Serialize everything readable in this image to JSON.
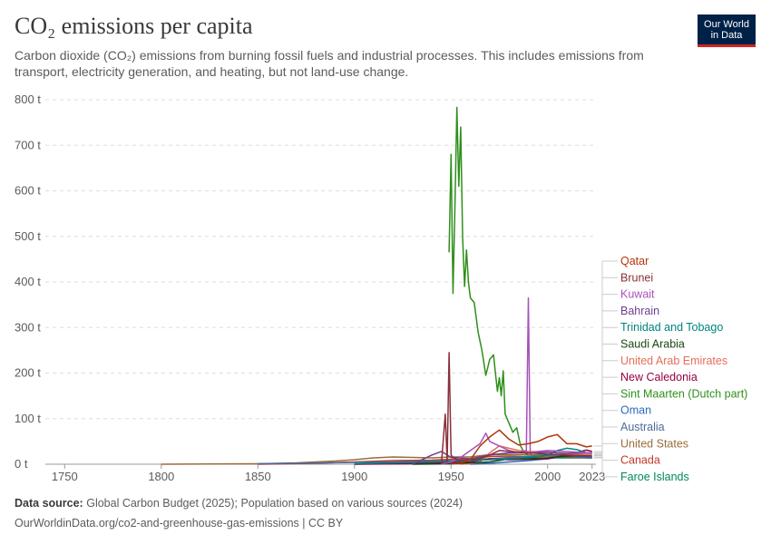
{
  "header": {
    "title": "CO₂ emissions per capita",
    "subtitle": "Carbon dioxide (CO₂) emissions from burning fossil fuels and industrial processes. This includes emissions from transport, electricity generation, and heating, but not land-use change.",
    "logo_line1": "Our World",
    "logo_line2": "in Data"
  },
  "footer": {
    "source_label": "Data source:",
    "source_text": "Global Carbon Budget (2025); Population based on various sources (2024)",
    "url": "OurWorldinData.org/co2-and-greenhouse-gas-emissions | CC BY"
  },
  "chart_data": {
    "type": "line",
    "title": "CO₂ emissions per capita",
    "xlabel": "",
    "ylabel": "",
    "xlim": [
      1740,
      2025
    ],
    "ylim": [
      0,
      800
    ],
    "y_ticks": [
      0,
      100,
      200,
      300,
      400,
      500,
      600,
      700,
      800
    ],
    "y_tick_labels": [
      "0 t",
      "100 t",
      "200 t",
      "300 t",
      "400 t",
      "500 t",
      "600 t",
      "700 t",
      "800 t"
    ],
    "x_ticks": [
      1750,
      1800,
      1850,
      1900,
      1950,
      2000,
      2023
    ],
    "x_tick_labels": [
      "1750",
      "1800",
      "1850",
      "1900",
      "1950",
      "2000",
      "2023"
    ],
    "grid": true,
    "legend_position": "right",
    "series": [
      {
        "name": "Qatar",
        "color": "#b13507",
        "x": [
          1950,
          1955,
          1960,
          1965,
          1970,
          1975,
          1980,
          1985,
          1990,
          1995,
          2000,
          2005,
          2010,
          2015,
          2020,
          2023
        ],
        "values": [
          1,
          3,
          10,
          40,
          60,
          75,
          55,
          42,
          45,
          50,
          60,
          65,
          45,
          45,
          38,
          40
        ]
      },
      {
        "name": "Brunei",
        "color": "#883039",
        "x": [
          1945,
          1947,
          1948,
          1949,
          1950,
          1951,
          1953,
          1955,
          1960,
          1965,
          1970,
          1975,
          1980,
          1990,
          2000,
          2010,
          2023
        ],
        "values": [
          0,
          110,
          5,
          245,
          20,
          15,
          10,
          8,
          10,
          12,
          20,
          30,
          28,
          25,
          22,
          20,
          18
        ]
      },
      {
        "name": "Kuwait",
        "color": "#a652ba",
        "x": [
          1945,
          1950,
          1955,
          1960,
          1965,
          1968,
          1970,
          1975,
          1980,
          1985,
          1989,
          1990,
          1991,
          1992,
          1995,
          2000,
          2010,
          2023
        ],
        "values": [
          0,
          5,
          15,
          30,
          45,
          68,
          50,
          40,
          30,
          25,
          30,
          365,
          20,
          25,
          28,
          30,
          28,
          24
        ]
      },
      {
        "name": "Bahrain",
        "color": "#6d3e91",
        "x": [
          1930,
          1940,
          1945,
          1950,
          1960,
          1970,
          1980,
          1990,
          2000,
          2010,
          2023
        ],
        "values": [
          0,
          20,
          28,
          15,
          12,
          20,
          25,
          24,
          26,
          24,
          25
        ]
      },
      {
        "name": "Trinidad and Tobago",
        "color": "#00847e",
        "x": [
          1900,
          1920,
          1940,
          1960,
          1970,
          1980,
          1990,
          2000,
          2005,
          2010,
          2015,
          2020,
          2023
        ],
        "values": [
          1,
          3,
          5,
          8,
          10,
          12,
          15,
          20,
          30,
          35,
          32,
          25,
          24
        ]
      },
      {
        "name": "Saudi Arabia",
        "color": "#18470f",
        "x": [
          1930,
          1950,
          1960,
          1970,
          1980,
          1990,
          2000,
          2010,
          2015,
          2023
        ],
        "values": [
          0,
          1,
          3,
          5,
          12,
          12,
          14,
          18,
          19,
          18
        ]
      },
      {
        "name": "United Arab Emirates",
        "color": "#e56e5a",
        "x": [
          1955,
          1960,
          1965,
          1970,
          1975,
          1980,
          1985,
          1990,
          2000,
          2010,
          2023
        ],
        "values": [
          0,
          1,
          5,
          25,
          40,
          35,
          30,
          28,
          27,
          22,
          21
        ]
      },
      {
        "name": "New Caledonia",
        "color": "#970046",
        "x": [
          1900,
          1930,
          1960,
          1970,
          1980,
          1990,
          2000,
          2010,
          2020,
          2023
        ],
        "values": [
          0,
          1,
          5,
          12,
          10,
          11,
          12,
          20,
          31,
          28
        ]
      },
      {
        "name": "Sint Maarten (Dutch part)",
        "color": "#38aaba",
        "x": [
          1949,
          1950,
          1951,
          1952,
          1953,
          1954,
          1955,
          1956,
          1957,
          1958,
          1959,
          1960,
          1962,
          1964,
          1966,
          1968,
          1970,
          1972,
          1973,
          1974,
          1975,
          1976,
          1977,
          1978,
          1980,
          1982,
          1984,
          1985,
          1986,
          1988,
          1990
        ],
        "values": [
          465,
          680,
          375,
          560,
          783,
          610,
          740,
          500,
          390,
          470,
          400,
          365,
          355,
          290,
          250,
          195,
          230,
          240,
          200,
          160,
          190,
          150,
          205,
          110,
          90,
          70,
          80,
          60,
          40,
          25,
          20
        ]
      },
      {
        "name": "Oman",
        "color": "#286bbb",
        "x": [
          1960,
          1965,
          1970,
          1980,
          1990,
          2000,
          2010,
          2015,
          2023
        ],
        "values": [
          0,
          1,
          2,
          5,
          8,
          12,
          18,
          17,
          15
        ]
      },
      {
        "name": "Australia",
        "color": "#4c6a9c",
        "x": [
          1850,
          1870,
          1900,
          1920,
          1940,
          1960,
          1980,
          1990,
          2000,
          2010,
          2023
        ],
        "values": [
          1,
          2,
          4,
          5,
          7,
          9,
          15,
          17,
          19,
          18,
          14
        ]
      },
      {
        "name": "United States",
        "color": "#996d39",
        "x": [
          1800,
          1850,
          1870,
          1890,
          1900,
          1910,
          1920,
          1930,
          1940,
          1950,
          1960,
          1970,
          1980,
          1990,
          2000,
          2010,
          2020,
          2023
        ],
        "values": [
          0,
          1,
          3,
          7,
          10,
          14,
          16,
          15,
          14,
          16,
          16,
          21,
          21,
          20,
          21,
          18,
          14,
          14
        ]
      },
      {
        "name": "Canada",
        "color": "#c0392b",
        "x": [
          1850,
          1880,
          1900,
          1920,
          1940,
          1950,
          1960,
          1970,
          1980,
          1990,
          2000,
          2010,
          2020,
          2023
        ],
        "values": [
          0,
          2,
          5,
          8,
          9,
          11,
          12,
          17,
          18,
          16,
          18,
          16,
          14,
          14
        ]
      },
      {
        "name": "Faroe Islands",
        "color": "#00875e",
        "x": [
          1900,
          1950,
          1970,
          1990,
          2000,
          2010,
          2023
        ],
        "values": [
          0,
          5,
          12,
          14,
          14,
          14,
          14
        ]
      }
    ]
  }
}
